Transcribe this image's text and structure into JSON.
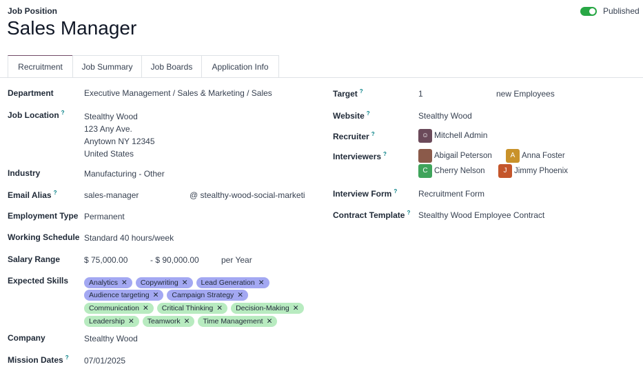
{
  "header": {
    "breadcrumb": "Job Position",
    "title": "Sales Manager",
    "published_label": "Published",
    "published": true
  },
  "tabs": [
    "Recruitment",
    "Job Summary",
    "Job Boards",
    "Application Info"
  ],
  "left": {
    "department": {
      "label": "Department",
      "value": "Executive Management / Sales & Marketing / Sales"
    },
    "job_location": {
      "label": "Job Location",
      "lines": [
        "Stealthy Wood",
        "123 Any Ave.",
        "Anytown NY 12345",
        "United States"
      ]
    },
    "industry": {
      "label": "Industry",
      "value": "Manufacturing - Other"
    },
    "email_alias": {
      "label": "Email Alias",
      "value": "sales-manager",
      "domain": "@ stealthy-wood-social-marketi"
    },
    "employment_type": {
      "label": "Employment Type",
      "value": "Permanent"
    },
    "working_schedule": {
      "label": "Working Schedule",
      "value": "Standard 40 hours/week"
    },
    "salary_range": {
      "label": "Salary Range",
      "min": "$ 75,000.00",
      "max": "- $ 90,000.00",
      "period": "per Year"
    },
    "expected_skills": {
      "label": "Expected Skills",
      "rows": [
        [
          {
            "name": "Analytics",
            "color": "blue"
          },
          {
            "name": "Copywriting",
            "color": "blue"
          },
          {
            "name": "Lead Generation",
            "color": "blue"
          }
        ],
        [
          {
            "name": "Audience targeting",
            "color": "blue"
          },
          {
            "name": "Campaign Strategy",
            "color": "blue"
          }
        ],
        [
          {
            "name": "Communication",
            "color": "green"
          },
          {
            "name": "Critical Thinking",
            "color": "green"
          },
          {
            "name": "Decision-Making",
            "color": "green"
          }
        ],
        [
          {
            "name": "Leadership",
            "color": "green"
          },
          {
            "name": "Teamwork",
            "color": "green"
          },
          {
            "name": "Time Management",
            "color": "green"
          }
        ]
      ]
    },
    "company": {
      "label": "Company",
      "value": "Stealthy Wood"
    },
    "mission_dates": {
      "label": "Mission Dates",
      "value": "07/01/2025"
    }
  },
  "right": {
    "target": {
      "label": "Target",
      "value": "1",
      "unit": "new Employees"
    },
    "website": {
      "label": "Website",
      "value": "Stealthy Wood"
    },
    "recruiter": {
      "label": "Recruiter",
      "value": "Mitchell Admin"
    },
    "interviewers": {
      "label": "Interviewers",
      "people": [
        {
          "name": "Abigail Peterson",
          "initial": "",
          "color": "#8b5a4a"
        },
        {
          "name": "Anna Foster",
          "initial": "A",
          "color": "#c9922a"
        },
        {
          "name": "Cherry Nelson",
          "initial": "C",
          "color": "#3fa45b"
        },
        {
          "name": "Jimmy Phoenix",
          "initial": "J",
          "color": "#c4562b"
        }
      ]
    },
    "interview_form": {
      "label": "Interview Form",
      "value": "Recruitment Form"
    },
    "contract_template": {
      "label": "Contract Template",
      "value": "Stealthy Wood Employee Contract"
    }
  },
  "help_mark": "?",
  "remove_glyph": "✕"
}
